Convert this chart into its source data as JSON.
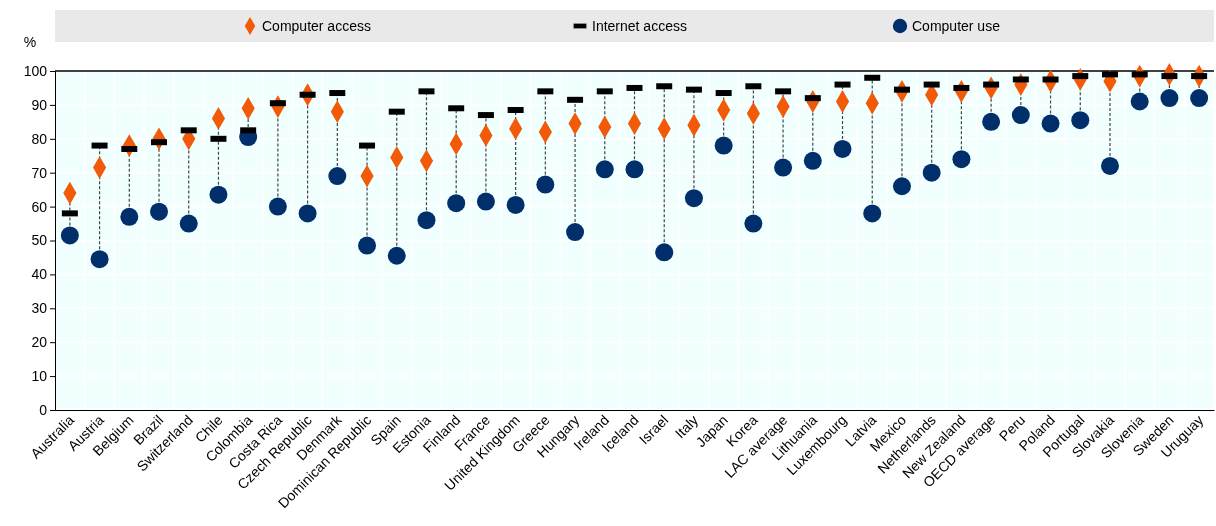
{
  "chart_data": {
    "type": "scatter",
    "ylabel": "%",
    "categories": [
      "Australia",
      "Austria",
      "Belgium",
      "Brazil",
      "Switzerland",
      "Chile",
      "Colombia",
      "Costa Rica",
      "Czech Republic",
      "Denmark",
      "Dominican Republic",
      "Spain",
      "Estonia",
      "Finland",
      "France",
      "United Kingdom",
      "Greece",
      "Hungary",
      "Ireland",
      "Iceland",
      "Israel",
      "Italy",
      "Japan",
      "Korea",
      "LAC average",
      "Lithuania",
      "Luxembourg",
      "Latvia",
      "Mexico",
      "Netherlands",
      "New Zealand",
      "OECD average",
      "Peru",
      "Poland",
      "Portugal",
      "Slovakia",
      "Slovenia",
      "Sweden",
      "Uruguay"
    ],
    "series": [
      {
        "name": "Computer access",
        "color": "#f15a09",
        "marker": "diamond",
        "values": [
          64,
          71.5,
          78,
          80,
          80,
          86,
          89,
          89.5,
          93,
          88,
          69,
          74.5,
          73.5,
          78.5,
          81,
          83,
          82,
          84.5,
          83.5,
          84.5,
          83,
          84,
          88.5,
          87.5,
          89.5,
          91,
          91,
          90.5,
          94,
          93,
          94,
          95,
          96,
          97,
          97.5,
          97,
          98.5,
          99,
          98.5
        ]
      },
      {
        "name": "Internet access",
        "color": "#000000",
        "values": [
          58,
          78,
          77,
          79,
          82.5,
          80,
          82.5,
          90.5,
          93,
          93.5,
          78,
          88,
          94,
          89,
          87,
          88.5,
          94,
          91.5,
          94,
          95,
          95.5,
          94.5,
          93.5,
          95.5,
          94,
          92,
          96,
          98,
          94.5,
          96,
          95,
          96,
          97.5,
          97.5,
          98.5,
          99,
          99,
          98.5,
          98.5
        ]
      },
      {
        "name": "Computer use",
        "color": "#002f6c",
        "marker": "circle",
        "values": [
          51.5,
          44.5,
          57,
          58.5,
          55,
          63.5,
          80.5,
          60,
          58,
          69,
          48.5,
          45.5,
          56,
          61,
          61.5,
          60.5,
          66.5,
          52.5,
          71,
          71,
          46.5,
          62.5,
          78,
          55,
          71.5,
          73.5,
          77,
          58,
          66,
          70,
          74,
          85,
          87,
          84.5,
          85.5,
          72,
          91,
          92,
          92
        ]
      }
    ],
    "ylim": [
      0,
      100
    ],
    "yticks": [
      0,
      10,
      20,
      30,
      40,
      50,
      60,
      70,
      80,
      90,
      100
    ],
    "grid": true,
    "legend": "top"
  }
}
